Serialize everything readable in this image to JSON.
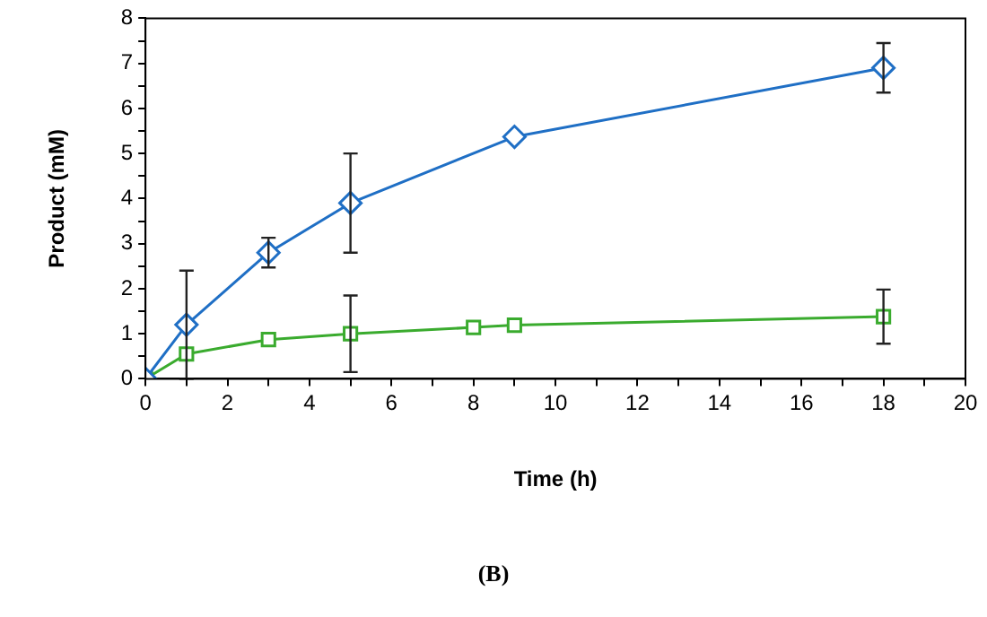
{
  "chart_data": {
    "type": "line",
    "xlabel": "Time (h)",
    "ylabel": "Product (mM)",
    "annotations": [
      "(B)"
    ],
    "xlim": [
      0,
      20
    ],
    "ylim": [
      0,
      8
    ],
    "xticks": [
      0,
      {
        "value": 1,
        "label": null
      },
      2,
      {
        "value": 3,
        "label": null
      },
      4,
      {
        "value": 5,
        "label": null
      },
      6,
      {
        "value": 7,
        "label": null
      },
      8,
      {
        "value": 9,
        "label": null
      },
      10,
      {
        "value": 11,
        "label": null
      },
      12,
      {
        "value": 13,
        "label": null
      },
      14,
      {
        "value": 15,
        "label": null
      },
      16,
      {
        "value": 17,
        "label": null
      },
      18,
      {
        "value": 19,
        "label": null
      },
      20
    ],
    "yticks": [
      0,
      {
        "value": 0.5,
        "label": null
      },
      1,
      {
        "value": 1.5,
        "label": null
      },
      2,
      {
        "value": 2.5,
        "label": null
      },
      3,
      {
        "value": 3.5,
        "label": null
      },
      4,
      {
        "value": 4.5,
        "label": null
      },
      5,
      {
        "value": 5.5,
        "label": null
      },
      6,
      {
        "value": 6.5,
        "label": null
      },
      7,
      {
        "value": 7.5,
        "label": null
      },
      8
    ],
    "grid": false,
    "legend": false,
    "series": [
      {
        "color": "#1f6fc5",
        "marker": "diamond",
        "x": [
          0,
          1,
          3,
          5,
          9,
          18
        ],
        "values": [
          0,
          1.2,
          2.8,
          3.9,
          5.37,
          6.9
        ],
        "errors": [
          null,
          1.2,
          0.33,
          1.1,
          null,
          0.55
        ]
      },
      {
        "color": "#3aab2e",
        "marker": "square",
        "x": [
          0,
          1,
          3,
          5,
          8,
          9,
          18
        ],
        "values": [
          0,
          0.55,
          0.87,
          1.0,
          1.14,
          1.19,
          1.38
        ],
        "errors": [
          null,
          null,
          null,
          0.85,
          null,
          null,
          0.6
        ]
      }
    ]
  }
}
